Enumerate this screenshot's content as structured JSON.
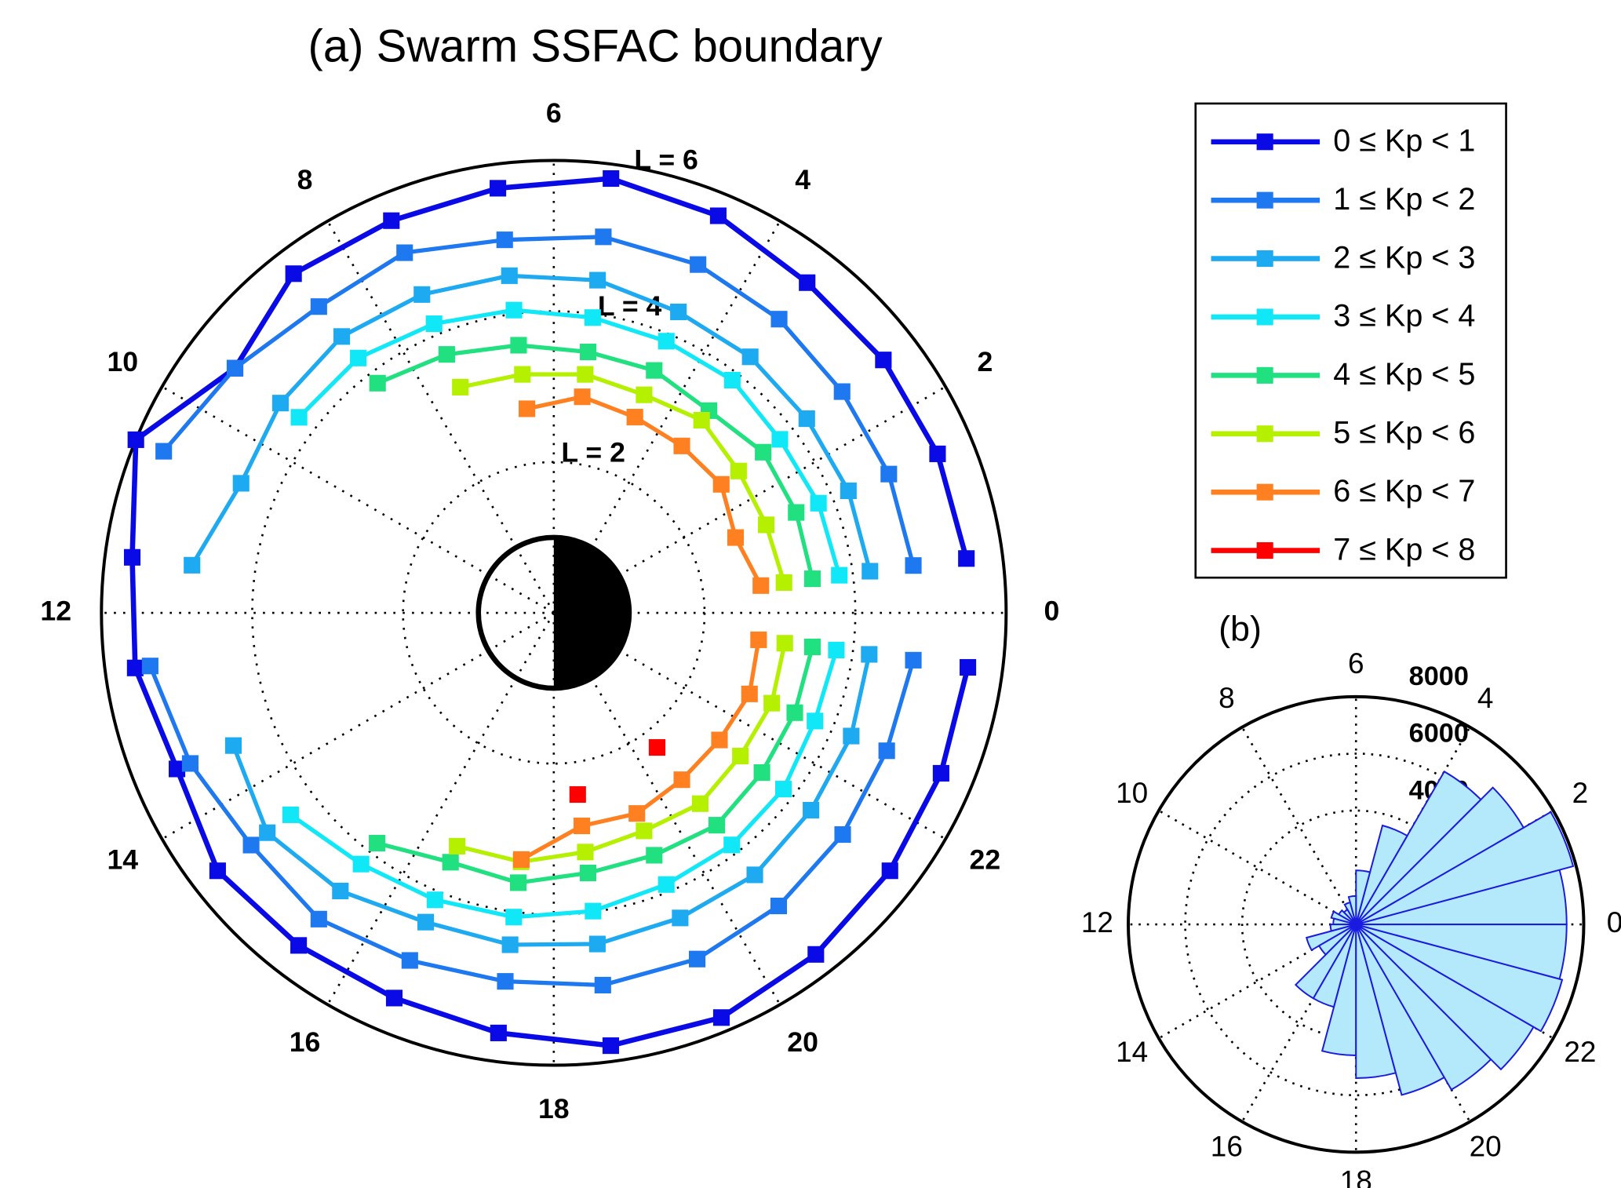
{
  "chart_data": [
    {
      "type": "polar_line",
      "title": "(a) Swarm SSFAC boundary",
      "x": [
        0.5,
        1.5,
        2.5,
        3.5,
        4.5,
        5.5,
        6.5,
        7.5,
        8.5,
        9.5,
        10.5,
        11.5,
        12.5,
        13.5,
        14.5,
        15.5,
        16.5,
        17.5,
        18.5,
        19.5,
        20.5,
        21.5,
        22.5,
        23.5
      ],
      "xlim": [
        0,
        24
      ],
      "xticks": [
        0,
        2,
        4,
        6,
        8,
        10,
        12,
        14,
        16,
        18,
        20,
        22
      ],
      "rlim": [
        0,
        6
      ],
      "rticks": [
        {
          "value": 2,
          "label": "L = 2"
        },
        {
          "value": 4,
          "label": "L = 4"
        },
        {
          "value": 6,
          "label": "L = 6"
        }
      ],
      "grid": true,
      "legend": "outside right",
      "series": [
        {
          "name": "0 ≤ Kp < 1",
          "color": "#0a0ae6",
          "values": [
            5.52,
            5.51,
            5.51,
            5.52,
            5.7,
            5.81,
            5.68,
            5.63,
            5.67,
            5.33,
            6.0,
            5.64,
            5.6,
            5.41,
            5.62,
            5.56,
            5.53,
            5.62,
            5.79,
            5.81,
            5.71,
            5.62,
            5.56,
            5.54
          ]
        },
        {
          "name": "1 ≤ Kp < 2",
          "color": "#1e78f0",
          "values": [
            4.81,
            4.81,
            4.82,
            4.91,
            5.0,
            5.03,
            4.99,
            5.17,
            5.12,
            5.33,
            5.6,
            null,
            5.4,
            5.22,
            5.06,
            5.12,
            4.99,
            4.93,
            4.98,
            4.97,
            4.9,
            4.83,
            4.78,
            4.81
          ]
        },
        {
          "name": "2 ≤ Kp < 3",
          "color": "#1eaaf0",
          "values": [
            4.23,
            4.23,
            4.23,
            4.28,
            4.32,
            4.45,
            4.51,
            4.57,
            4.62,
            4.57,
            4.49,
            4.84,
            null,
            4.6,
            4.79,
            4.65,
            4.44,
            4.44,
            4.43,
            4.38,
            4.38,
            4.3,
            4.27,
            4.22
          ]
        },
        {
          "name": "3 ≤ Kp < 4",
          "color": "#10e8f8",
          "values": [
            3.82,
            3.8,
            3.78,
            3.89,
            3.9,
            3.95,
            4.05,
            4.15,
            4.26,
            4.26,
            null,
            null,
            null,
            null,
            4.4,
            4.2,
            4.12,
            4.07,
            3.99,
            3.9,
            3.88,
            3.84,
            3.75,
            3.78
          ]
        },
        {
          "name": "4 ≤ Kp < 5",
          "color": "#20e080",
          "values": [
            3.46,
            3.48,
            3.5,
            3.38,
            3.48,
            3.49,
            3.58,
            3.71,
            3.84,
            null,
            null,
            null,
            null,
            null,
            null,
            3.85,
            3.58,
            3.61,
            3.48,
            3.48,
            3.55,
            3.48,
            3.46,
            3.46
          ]
        },
        {
          "name": "5 ≤ Kp < 6",
          "color": "#b4f000",
          "values": [
            3.08,
            3.05,
            3.09,
            3.22,
            3.13,
            3.19,
            3.19,
            3.24,
            null,
            null,
            null,
            null,
            null,
            null,
            null,
            null,
            3.35,
            3.33,
            3.2,
            3.13,
            3.19,
            3.12,
            3.13,
            3.09
          ]
        },
        {
          "name": "6 ≤ Kp < 7",
          "color": "#ff8020",
          "values": [
            2.77,
            2.61,
            2.8,
            2.79,
            2.81,
            2.89,
            2.73,
            null,
            null,
            null,
            null,
            null,
            null,
            null,
            null,
            null,
            null,
            3.3,
            2.85,
            2.88,
            2.79,
            2.77,
            2.81,
            2.74
          ]
        },
        {
          "name": "7 ≤ Kp < 8",
          "color": "#ff0000",
          "values": [
            null,
            null,
            null,
            null,
            null,
            null,
            null,
            null,
            null,
            null,
            null,
            null,
            null,
            null,
            null,
            null,
            null,
            null,
            2.43,
            null,
            2.25,
            null,
            null,
            null
          ]
        }
      ]
    },
    {
      "type": "polar_histogram",
      "title": "(b)",
      "bins": [
        0,
        1,
        2,
        3,
        4,
        5,
        6,
        7,
        8,
        9,
        10,
        11,
        12,
        13,
        14,
        15,
        16,
        17,
        18,
        19,
        20,
        21,
        22,
        23,
        24
      ],
      "values": [
        7400,
        7900,
        6800,
        6200,
        3600,
        1900,
        1000,
        800,
        600,
        700,
        900,
        800,
        900,
        1800,
        1500,
        3000,
        3000,
        4600,
        5400,
        6200,
        6700,
        7200,
        7500,
        7400
      ],
      "xlim": [
        0,
        24
      ],
      "xticks": [
        0,
        2,
        4,
        6,
        8,
        10,
        12,
        14,
        16,
        18,
        20,
        22
      ],
      "rlim": [
        0,
        8000
      ],
      "rticks": [
        4000,
        6000,
        8000
      ],
      "grid": true,
      "color": "#b3e9fa",
      "edgecolor": "#1a1ae0"
    }
  ]
}
